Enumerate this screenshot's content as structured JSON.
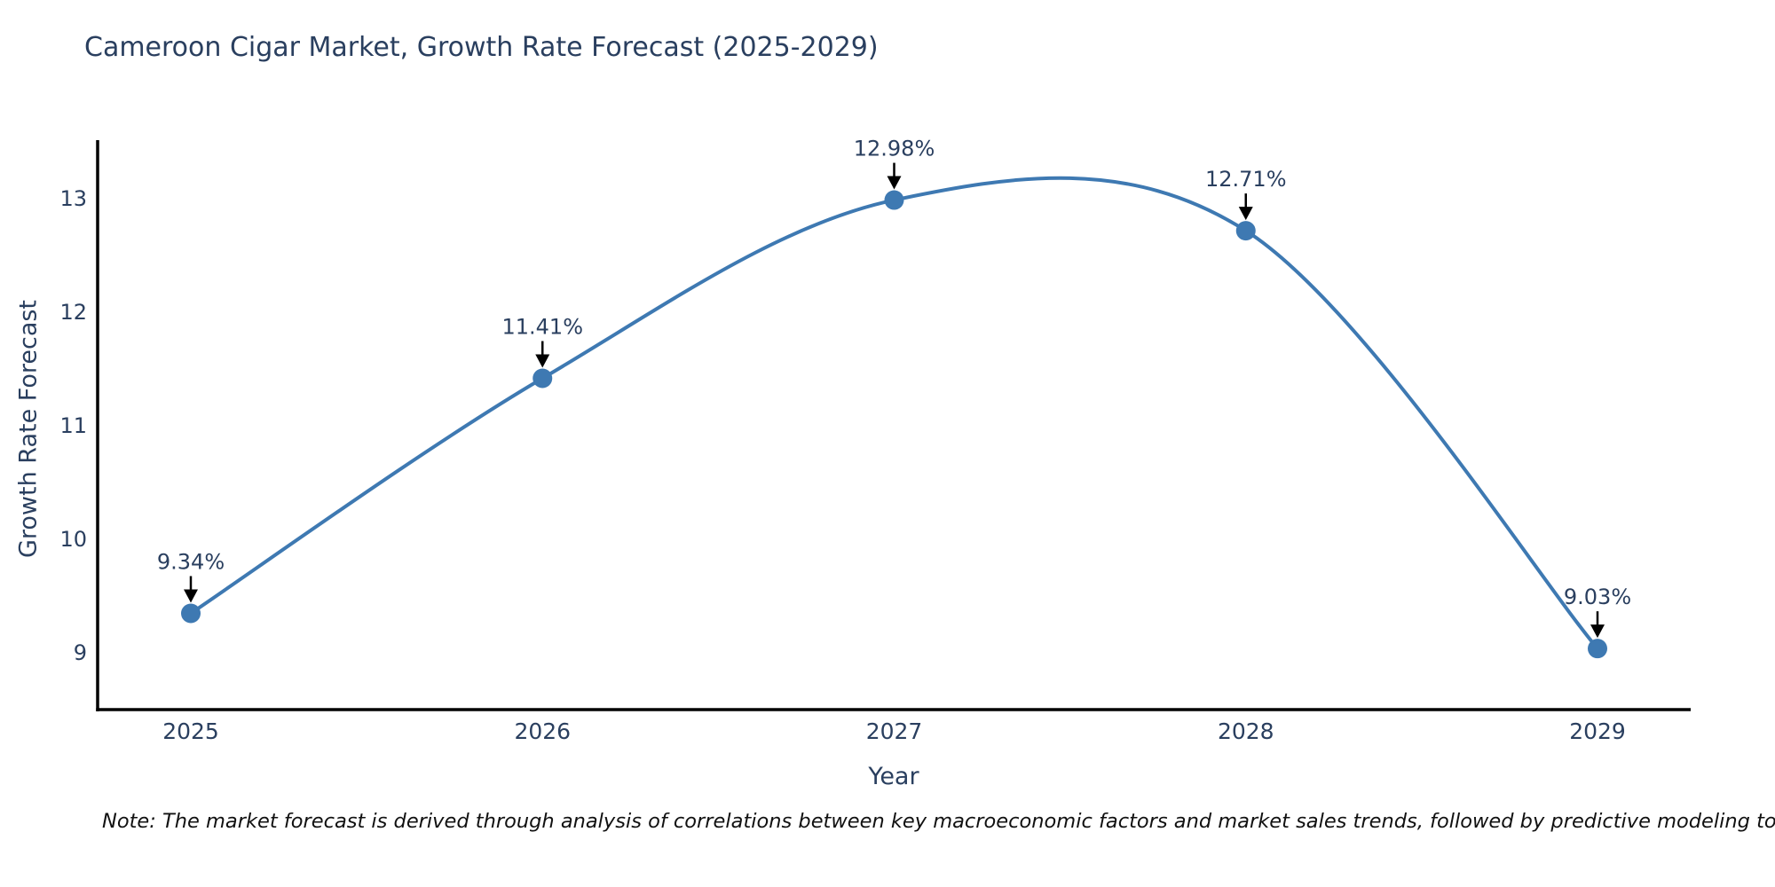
{
  "title": "Cameroon Cigar Market, Growth Rate Forecast (2025-2029)",
  "footnote": "Note: The market forecast is derived through analysis of correlations between key macroeconomic factors and market sales trends, followed by predictive modeling to project future sales",
  "chart_data": {
    "type": "line",
    "title": "Cameroon Cigar Market, Growth Rate Forecast (2025-2029)",
    "xlabel": "Year",
    "ylabel": "Growth Rate Forecast",
    "x": [
      2025,
      2026,
      2027,
      2028,
      2029
    ],
    "x_tick_labels": [
      "2025",
      "2026",
      "2027",
      "2028",
      "2029"
    ],
    "series": [
      {
        "name": "Growth Rate Forecast",
        "values": [
          9.34,
          11.41,
          12.98,
          12.71,
          9.03
        ]
      }
    ],
    "point_labels": [
      "9.34%",
      "11.41%",
      "12.98%",
      "12.71%",
      "9.03%"
    ],
    "yticks": [
      9,
      10,
      11,
      12,
      13
    ],
    "ylim": [
      8.45,
      13.55
    ],
    "line_shape": "spline",
    "grid": false,
    "legend": "none",
    "colors": {
      "line": "#3e79b2",
      "marker": "#3e79b2",
      "axis": "#000000",
      "text": "#2a3f5f",
      "annotation_arrow": "#000000"
    }
  }
}
